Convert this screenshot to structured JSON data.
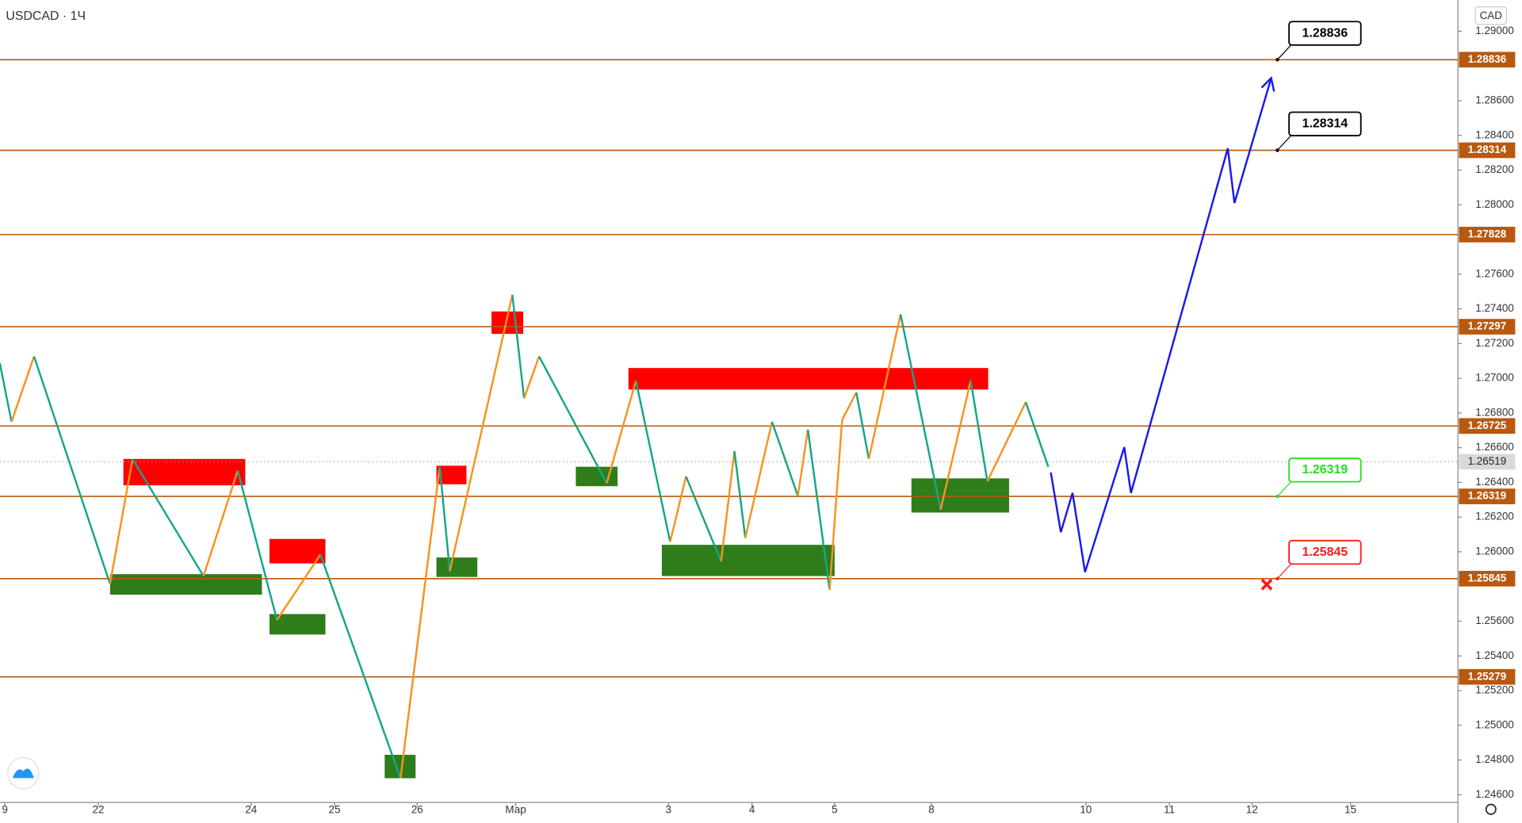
{
  "chart_data": {
    "type": "line",
    "title": "USDCAD · 1Ч",
    "y_axis_label": "CAD",
    "xlim": [
      -0.058,
      17.407
    ],
    "ylim": [
      1.24555,
      1.2918
    ],
    "xticks": [
      {
        "value": 0,
        "label": "9"
      },
      {
        "value": 1.12,
        "label": "22"
      },
      {
        "value": 2.95,
        "label": "24"
      },
      {
        "value": 3.95,
        "label": "25"
      },
      {
        "value": 4.94,
        "label": "26"
      },
      {
        "value": 6.12,
        "label": "Мар"
      },
      {
        "value": 7.95,
        "label": "3"
      },
      {
        "value": 8.95,
        "label": "4"
      },
      {
        "value": 9.94,
        "label": "5"
      },
      {
        "value": 11.1,
        "label": "8"
      },
      {
        "value": 12.95,
        "label": "10"
      },
      {
        "value": 13.95,
        "label": "11"
      },
      {
        "value": 14.94,
        "label": "12"
      },
      {
        "value": 16.12,
        "label": "15"
      }
    ],
    "yticks": [
      {
        "value": 1.29,
        "label": "1.29000"
      },
      {
        "value": 1.286,
        "label": "1.28600"
      },
      {
        "value": 1.284,
        "label": "1.28400"
      },
      {
        "value": 1.282,
        "label": "1.28200"
      },
      {
        "value": 1.28,
        "label": "1.28000"
      },
      {
        "value": 1.276,
        "label": "1.27600"
      },
      {
        "value": 1.274,
        "label": "1.27400"
      },
      {
        "value": 1.272,
        "label": "1.27200"
      },
      {
        "value": 1.27,
        "label": "1.27000"
      },
      {
        "value": 1.268,
        "label": "1.26800"
      },
      {
        "value": 1.266,
        "label": "1.26600"
      },
      {
        "value": 1.264,
        "label": "1.26400"
      },
      {
        "value": 1.262,
        "label": "1.26200"
      },
      {
        "value": 1.26,
        "label": "1.26000"
      },
      {
        "value": 1.256,
        "label": "1.25600"
      },
      {
        "value": 1.254,
        "label": "1.25400"
      },
      {
        "value": 1.252,
        "label": "1.25200"
      },
      {
        "value": 1.25,
        "label": "1.25000"
      },
      {
        "value": 1.248,
        "label": "1.24800"
      },
      {
        "value": 1.246,
        "label": "1.24600"
      }
    ],
    "levels": [
      1.28836,
      1.28314,
      1.27828,
      1.27297,
      1.26725,
      1.26319,
      1.25845,
      1.25279
    ],
    "level_color": "#b8590f",
    "last_price": 1.26519,
    "x": [
      -0.06,
      0.08,
      0.35,
      1.26,
      1.53,
      2.38,
      2.79,
      3.26,
      3.78,
      4.74,
      5.21,
      5.33,
      6.08,
      6.22,
      6.4,
      7.21,
      7.56,
      7.97,
      8.16,
      8.58,
      8.74,
      8.87,
      9.19,
      9.5,
      9.62,
      9.88,
      10.03,
      10.2,
      10.35,
      10.73,
      11.21,
      11.57,
      11.77,
      12.23,
      12.5
    ],
    "values": [
      1.27087,
      1.26749,
      1.27126,
      1.25815,
      1.26535,
      1.2586,
      1.26468,
      1.25607,
      1.25984,
      1.24695,
      1.2649,
      1.25888,
      1.27481,
      1.26884,
      1.27126,
      1.26395,
      1.26986,
      1.26057,
      1.26434,
      1.25945,
      1.2658,
      1.2608,
      1.26749,
      1.26322,
      1.26704,
      1.25781,
      1.2676,
      1.26918,
      1.26535,
      1.27368,
      1.26243,
      1.26986,
      1.26406,
      1.26862,
      1.2649
    ],
    "up_color": "#f7931e",
    "down_color": "#17a589",
    "forecast": {
      "color": "#1a1ae6",
      "x": [
        12.53,
        12.65,
        12.79,
        12.94,
        13.41,
        13.49,
        14.65,
        14.73,
        15.17
      ],
      "values": [
        1.26457,
        1.26113,
        1.26339,
        1.25883,
        1.26603,
        1.26339,
        1.28325,
        1.2801,
        1.2873
      ]
    },
    "zones": [
      {
        "color": "#ff0000",
        "x": [
          1.42,
          2.88
        ],
        "y": [
          1.26383,
          1.26535
        ]
      },
      {
        "color": "#ff0000",
        "x": [
          3.17,
          3.84
        ],
        "y": [
          1.25933,
          1.26074
        ]
      },
      {
        "color": "#ff0000",
        "x": [
          5.17,
          5.53
        ],
        "y": [
          1.26389,
          1.26496
        ]
      },
      {
        "color": "#ff0000",
        "x": [
          5.83,
          6.21
        ],
        "y": [
          1.27256,
          1.27385
        ]
      },
      {
        "color": "#ff0000",
        "x": [
          7.47,
          11.78
        ],
        "y": [
          1.26935,
          1.27059
        ]
      },
      {
        "color": "#2e7d1a",
        "x": [
          1.26,
          3.08
        ],
        "y": [
          1.25753,
          1.25871
        ]
      },
      {
        "color": "#2e7d1a",
        "x": [
          3.17,
          3.84
        ],
        "y": [
          1.25523,
          1.25641
        ]
      },
      {
        "color": "#2e7d1a",
        "x": [
          5.17,
          5.66
        ],
        "y": [
          1.25855,
          1.25967
        ]
      },
      {
        "color": "#2e7d1a",
        "x": [
          6.84,
          7.34
        ],
        "y": [
          1.26378,
          1.2649
        ]
      },
      {
        "color": "#2e7d1a",
        "x": [
          7.87,
          9.94
        ],
        "y": [
          1.2586,
          1.2604
        ]
      },
      {
        "color": "#2e7d1a",
        "x": [
          10.86,
          12.03
        ],
        "y": [
          1.26226,
          1.26423
        ]
      },
      {
        "color": "#2e7d1a",
        "x": [
          4.55,
          4.92
        ],
        "y": [
          1.24695,
          1.2483
        ]
      }
    ],
    "callouts": [
      {
        "value": 1.28836,
        "color": "#000000"
      },
      {
        "value": 1.28314,
        "color": "#000000"
      },
      {
        "value": 1.26319,
        "color": "#22e022"
      },
      {
        "value": 1.25845,
        "color": "#ff1a1a"
      }
    ]
  }
}
